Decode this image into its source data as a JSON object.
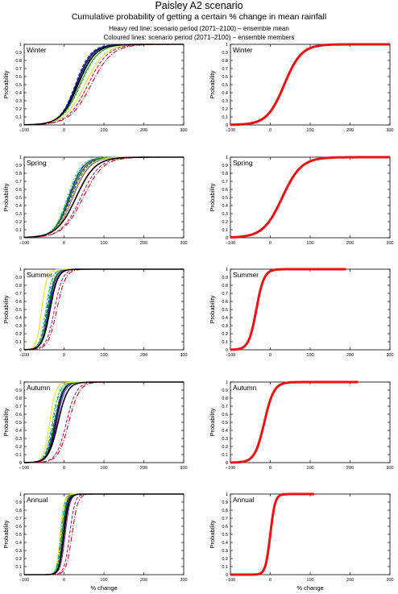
{
  "header": {
    "title": "Paisley A2 scenario",
    "subtitle": "Cumulative probability of getting a certain % change in mean rainfall",
    "legend_line_1": "Heavy red line: scenario period (2071–2100) – ensemble mean",
    "legend_line_2": "Coloured lines: scenario period (2071–2100) – ensemble members"
  },
  "axes_text": {
    "ylabel": "Probability",
    "xlabel": "% change",
    "x_ticks": [
      "−100",
      "0",
      "100",
      "200",
      "300"
    ],
    "y_ticks": [
      "0",
      "0.1",
      "0.2",
      "0.3",
      "0.4",
      "0.5",
      "0.6",
      "0.7",
      "0.8",
      "0.9",
      "1"
    ]
  },
  "chart_data": {
    "type": "line",
    "xlim": [
      -100,
      300
    ],
    "ylim": [
      0,
      1
    ],
    "grid": false,
    "member_colors": [
      "#000000",
      "#000080",
      "#2020c0",
      "#6a2ea8",
      "#00a0a0",
      "#1e8a1e",
      "#50c850",
      "#e6e020",
      "#b00000",
      "#c00050"
    ],
    "mean_color": "#ee1111",
    "seasons": [
      {
        "name": "Winter",
        "mean_median": 35,
        "mean_scale": 36,
        "members_median": [
          32,
          30,
          28,
          36,
          34,
          40,
          42,
          52,
          68,
          60
        ],
        "members_scale": [
          34,
          33,
          32,
          36,
          35,
          38,
          38,
          42,
          44,
          42
        ],
        "mean_x_max": 300
      },
      {
        "name": "Spring",
        "mean_median": 30,
        "mean_scale": 40,
        "members_median": [
          15,
          12,
          18,
          22,
          10,
          14,
          8,
          20,
          48,
          42
        ],
        "members_scale": [
          32,
          30,
          33,
          35,
          30,
          32,
          28,
          34,
          42,
          40
        ],
        "mean_x_max": 300
      },
      {
        "name": "Summer",
        "mean_median": -35,
        "mean_scale": 16,
        "members_median": [
          -40,
          -38,
          -42,
          -36,
          -44,
          -40,
          -46,
          -56,
          -18,
          -24
        ],
        "members_scale": [
          14,
          14,
          15,
          15,
          13,
          14,
          13,
          11,
          18,
          17
        ],
        "mean_x_max": 190
      },
      {
        "name": "Autumn",
        "mean_median": -15,
        "mean_scale": 20,
        "members_median": [
          -22,
          -20,
          -25,
          -18,
          -28,
          -24,
          -30,
          -36,
          12,
          6
        ],
        "members_scale": [
          16,
          16,
          17,
          17,
          15,
          16,
          15,
          13,
          22,
          21
        ],
        "mean_x_max": 220
      },
      {
        "name": "Annual",
        "mean_median": 0,
        "mean_scale": 10,
        "members_median": [
          -2,
          -5,
          0,
          3,
          -8,
          -4,
          -6,
          -10,
          20,
          14
        ],
        "members_scale": [
          9,
          9,
          9,
          10,
          8,
          9,
          8,
          8,
          12,
          11
        ],
        "mean_x_max": 110
      }
    ]
  }
}
